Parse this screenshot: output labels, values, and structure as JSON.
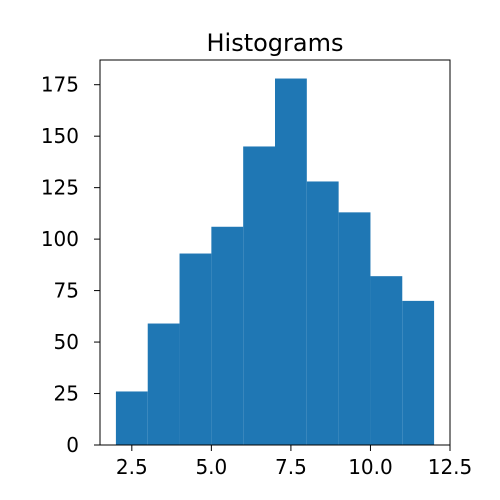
{
  "chart_data": {
    "type": "bar",
    "title": "Histograms",
    "xlabel": "",
    "ylabel": "",
    "bins": [
      {
        "start": 2.0,
        "end": 3.0,
        "count": 26
      },
      {
        "start": 3.0,
        "end": 4.0,
        "count": 59
      },
      {
        "start": 4.0,
        "end": 5.0,
        "count": 93
      },
      {
        "start": 5.0,
        "end": 6.0,
        "count": 106
      },
      {
        "start": 6.0,
        "end": 7.0,
        "count": 145
      },
      {
        "start": 7.0,
        "end": 8.0,
        "count": 178
      },
      {
        "start": 8.0,
        "end": 9.0,
        "count": 128
      },
      {
        "start": 9.0,
        "end": 10.0,
        "count": 113
      },
      {
        "start": 10.0,
        "end": 11.0,
        "count": 82
      },
      {
        "start": 11.0,
        "end": 12.0,
        "count": 70
      }
    ],
    "xlim": [
      1.5,
      12.5
    ],
    "ylim": [
      0,
      187
    ],
    "xticks": [
      2.5,
      5.0,
      7.5,
      10.0,
      12.5
    ],
    "xtick_labels": [
      "2.5",
      "5.0",
      "7.5",
      "10.0",
      "12.5"
    ],
    "yticks": [
      0,
      25,
      50,
      75,
      100,
      125,
      150,
      175
    ],
    "ytick_labels": [
      "0",
      "25",
      "50",
      "75",
      "100",
      "125",
      "150",
      "175"
    ],
    "bar_color": "#1f77b4",
    "grid": false
  }
}
